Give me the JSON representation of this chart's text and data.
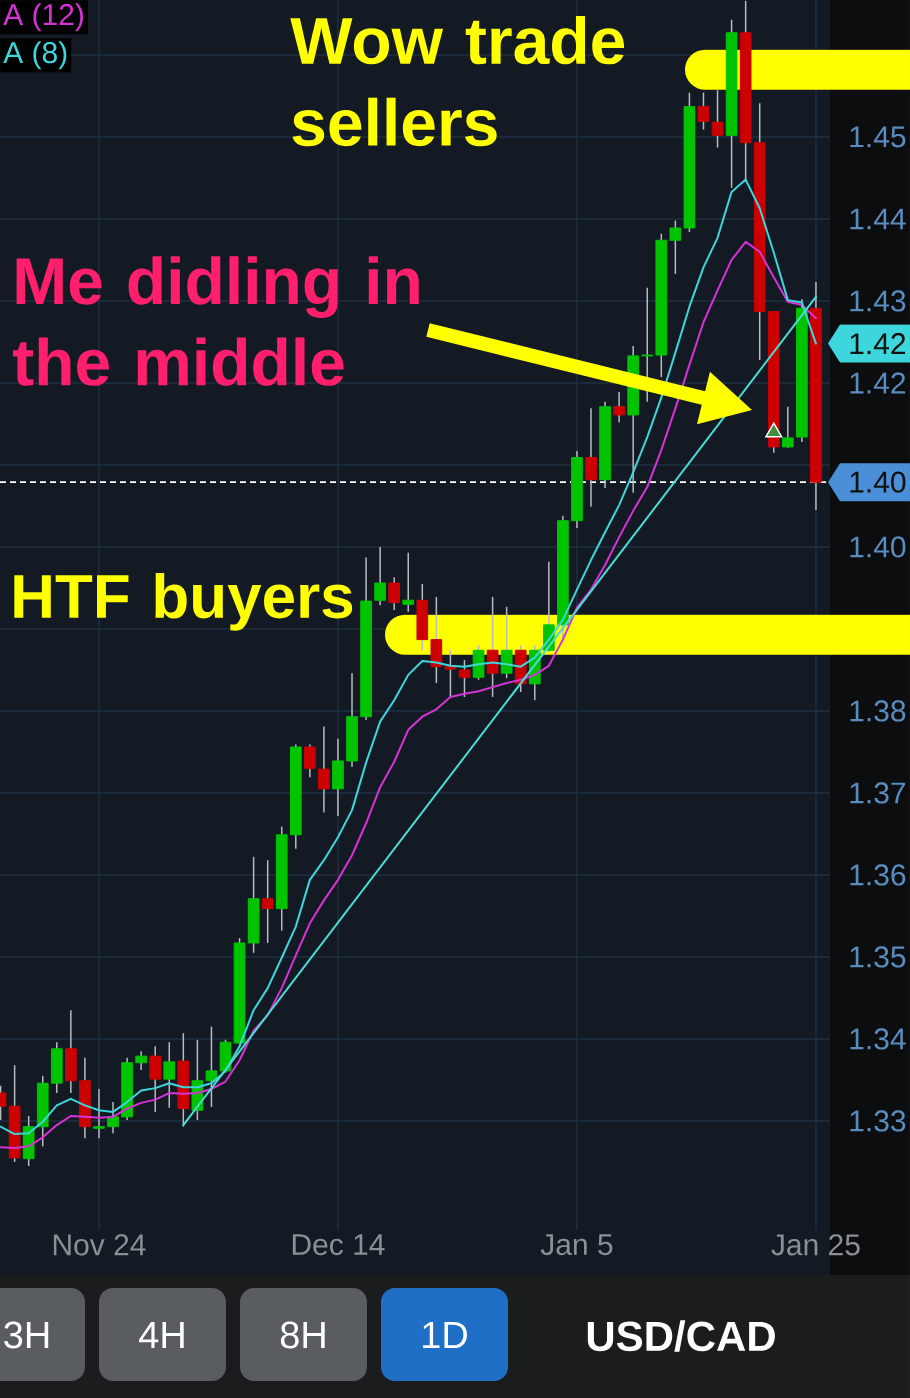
{
  "chart_data": {
    "type": "candlestick",
    "title": "USD/CAD",
    "categories": [
      null,
      null,
      null,
      null,
      null,
      null,
      null,
      "Nov 24",
      null,
      null,
      null,
      null,
      null,
      null,
      null,
      null,
      null,
      null,
      null,
      null,
      null,
      null,
      null,
      null,
      "Dec 14",
      null,
      null,
      null,
      null,
      null,
      null,
      null,
      null,
      null,
      null,
      null,
      null,
      null,
      null,
      null,
      null,
      "Jan 5",
      null,
      null,
      null,
      null,
      null,
      null,
      null,
      null,
      null,
      null,
      null,
      null,
      null,
      null,
      null,
      null,
      "Jan 25"
    ],
    "ohlc": [
      [
        1.3334,
        1.3343,
        1.3301,
        1.3318
      ],
      [
        1.3318,
        1.3368,
        1.325,
        1.3255
      ],
      [
        1.3254,
        1.3306,
        1.3245,
        1.3293
      ],
      [
        1.3293,
        1.3355,
        1.3269,
        1.3346
      ],
      [
        1.3346,
        1.3396,
        1.3334,
        1.3388
      ],
      [
        1.3388,
        1.3435,
        1.3334,
        1.3349
      ],
      [
        1.3349,
        1.3377,
        1.3279,
        1.3293
      ],
      [
        1.3291,
        1.3339,
        1.3279,
        1.3293
      ],
      [
        1.3293,
        1.3323,
        1.3285,
        1.3305
      ],
      [
        1.3305,
        1.3377,
        1.3301,
        1.3371
      ],
      [
        1.3371,
        1.3385,
        1.3362,
        1.3379
      ],
      [
        1.3379,
        1.3391,
        1.3311,
        1.3351
      ],
      [
        1.3351,
        1.3396,
        1.3316,
        1.3372
      ],
      [
        1.3373,
        1.3407,
        1.3293,
        1.3315
      ],
      [
        1.3313,
        1.3399,
        1.3301,
        1.3349
      ],
      [
        1.3349,
        1.3415,
        1.3317,
        1.3361
      ],
      [
        1.3361,
        1.3399,
        1.3359,
        1.3396
      ],
      [
        1.3395,
        1.3523,
        1.3394,
        1.3517
      ],
      [
        1.3517,
        1.3622,
        1.3505,
        1.3571
      ],
      [
        1.3571,
        1.3618,
        1.3517,
        1.3559
      ],
      [
        1.3559,
        1.3659,
        1.3532,
        1.3649
      ],
      [
        1.3649,
        1.3759,
        1.3632,
        1.3756
      ],
      [
        1.3756,
        1.3759,
        1.3719,
        1.373
      ],
      [
        1.3729,
        1.3781,
        1.3676,
        1.3705
      ],
      [
        1.3705,
        1.3766,
        1.3672,
        1.3739
      ],
      [
        1.3739,
        1.3846,
        1.3732,
        1.3793
      ],
      [
        1.3793,
        1.3987,
        1.3789,
        1.3934
      ],
      [
        1.3935,
        1.4,
        1.3929,
        1.3956
      ],
      [
        1.3956,
        1.3963,
        1.3923,
        1.3932
      ],
      [
        1.393,
        1.3993,
        1.3921,
        1.3935
      ],
      [
        1.3935,
        1.3955,
        1.3874,
        1.3887
      ],
      [
        1.3887,
        1.3939,
        1.3834,
        1.3854
      ],
      [
        1.3854,
        1.3874,
        1.3817,
        1.3851
      ],
      [
        1.385,
        1.3862,
        1.3817,
        1.3841
      ],
      [
        1.3841,
        1.388,
        1.3838,
        1.3874
      ],
      [
        1.3874,
        1.3939,
        1.3817,
        1.3846
      ],
      [
        1.3846,
        1.3927,
        1.384,
        1.3874
      ],
      [
        1.3874,
        1.388,
        1.3823,
        1.3833
      ],
      [
        1.3833,
        1.388,
        1.3813,
        1.3874
      ],
      [
        1.3874,
        1.3982,
        1.3872,
        1.3905
      ],
      [
        1.3905,
        1.4038,
        1.3887,
        1.4032
      ],
      [
        1.4032,
        1.4117,
        1.4023,
        1.4109
      ],
      [
        1.4109,
        1.4169,
        1.4049,
        1.4082
      ],
      [
        1.4082,
        1.4177,
        1.4072,
        1.4171
      ],
      [
        1.4171,
        1.4189,
        1.4152,
        1.4161
      ],
      [
        1.4161,
        1.4245,
        1.4066,
        1.4233
      ],
      [
        1.4233,
        1.4316,
        1.4177,
        1.4234
      ],
      [
        1.4234,
        1.4382,
        1.4207,
        1.4374
      ],
      [
        1.4374,
        1.4398,
        1.4333,
        1.4389
      ],
      [
        1.4389,
        1.4554,
        1.4384,
        1.4537
      ],
      [
        1.4537,
        1.4554,
        1.4509,
        1.4519
      ],
      [
        1.4518,
        1.4557,
        1.4487,
        1.4502
      ],
      [
        1.4502,
        1.4643,
        1.4438,
        1.4627
      ],
      [
        1.4627,
        1.4666,
        1.4448,
        1.4493
      ],
      [
        1.4493,
        1.4541,
        1.4228,
        1.4287
      ],
      [
        1.4287,
        1.4287,
        1.4115,
        1.4122
      ],
      [
        1.4122,
        1.4171,
        1.4121,
        1.4133
      ],
      [
        1.4134,
        1.4302,
        1.4128,
        1.4291
      ],
      [
        1.4291,
        1.4323,
        1.4045,
        1.4079
      ]
    ],
    "colors": [
      "#cc0000",
      "#cc0000",
      "#00c400",
      "#00c400",
      "#00c400",
      "#cc0000",
      "#cc0000",
      "#00c400",
      "#00c400",
      "#00c400",
      "#00c400",
      "#cc0000",
      "#00c400",
      "#cc0000",
      "#00c400",
      "#00c400",
      "#00c400",
      "#00c400",
      "#00c400",
      "#cc0000",
      "#00c400",
      "#00c400",
      "#cc0000",
      "#cc0000",
      "#00c400",
      "#00c400",
      "#00c400",
      "#00c400",
      "#cc0000",
      "#00c400",
      "#cc0000",
      "#cc0000",
      "#cc0000",
      "#cc0000",
      "#00c400",
      "#cc0000",
      "#00c400",
      "#cc0000",
      "#00c400",
      "#00c400",
      "#00c400",
      "#00c400",
      "#cc0000",
      "#00c400",
      "#cc0000",
      "#00c400",
      "#00c400",
      "#00c400",
      "#00c400",
      "#00c400",
      "#cc0000",
      "#cc0000",
      "#00c400",
      "#cc0000",
      "#cc0000",
      "#cc0000",
      "#00c400",
      "#00c400",
      "#cc0000"
    ],
    "series": [
      {
        "name": "A (12)",
        "type": "line",
        "color": "#d633d6",
        "values": [
          1.3268,
          1.3267,
          1.3269,
          1.328,
          1.3295,
          1.3306,
          1.3305,
          1.3304,
          1.3305,
          1.3315,
          1.3322,
          1.3326,
          1.3334,
          1.3333,
          1.3334,
          1.3339,
          1.3348,
          1.3374,
          1.341,
          1.3429,
          1.3462,
          1.3502,
          1.3541,
          1.3569,
          1.3594,
          1.3624,
          1.3663,
          1.3707,
          1.3738,
          1.3777,
          1.3793,
          1.3802,
          1.3817,
          1.3821,
          1.3824,
          1.3829,
          1.3834,
          1.3838,
          1.3844,
          1.3855,
          1.3887,
          1.3926,
          1.3948,
          1.3978,
          1.4012,
          1.4044,
          1.4073,
          1.4118,
          1.4169,
          1.4222,
          1.4274,
          1.4313,
          1.435,
          1.4372,
          1.436,
          1.4329,
          1.4299,
          1.4295,
          1.4279
        ]
      },
      {
        "name": "A (8)",
        "type": "line",
        "color": "#3dd6dc",
        "values": [
          1.3293,
          1.3284,
          1.3285,
          1.3299,
          1.3319,
          1.3327,
          1.3319,
          1.3313,
          1.3311,
          1.3323,
          1.3337,
          1.334,
          1.3346,
          1.3341,
          1.3341,
          1.3346,
          1.3361,
          1.3391,
          1.3435,
          1.3462,
          1.3499,
          1.3537,
          1.3594,
          1.3618,
          1.3646,
          1.3679,
          1.3737,
          1.3787,
          1.3813,
          1.3844,
          1.3861,
          1.3859,
          1.3855,
          1.3854,
          1.3857,
          1.3859,
          1.3857,
          1.3854,
          1.3865,
          1.3887,
          1.3911,
          1.3948,
          1.3984,
          1.4018,
          1.4051,
          1.4091,
          1.4134,
          1.4182,
          1.4237,
          1.4293,
          1.4341,
          1.4377,
          1.4433,
          1.4448,
          1.4413,
          1.4359,
          1.4301,
          1.4298,
          1.4248
        ],
        "value_labels": [
          null,
          null,
          null,
          null,
          null,
          null,
          null,
          null,
          null,
          null,
          null,
          null,
          null,
          null,
          null,
          null,
          null,
          null,
          null,
          null,
          null,
          null,
          null,
          null,
          null,
          null,
          null,
          null,
          null,
          null,
          null,
          null,
          null,
          null,
          null,
          null,
          null,
          null,
          null,
          null,
          null,
          null,
          null,
          null,
          null,
          null,
          null,
          null,
          null,
          null,
          null,
          null,
          null,
          null,
          null,
          null,
          null,
          null,
          "1.42"
        ]
      },
      {
        "type": "line",
        "color": "#48dcd4",
        "values": [
          null,
          null,
          null,
          null,
          null,
          null,
          null,
          null,
          null,
          null,
          null,
          null,
          null,
          1.3295,
          null,
          null,
          null,
          null,
          null,
          null,
          null,
          null,
          null,
          null,
          null,
          null,
          null,
          null,
          null,
          null,
          null,
          null,
          null,
          null,
          null,
          null,
          null,
          null,
          null,
          null,
          null,
          null,
          null,
          null,
          null,
          null,
          null,
          null,
          null,
          null,
          null,
          null,
          null,
          null,
          null,
          null,
          null,
          null,
          1.4305
        ]
      },
      {
        "type": "scatter",
        "marker": "triangle",
        "color": "#3f8f3f",
        "values": [
          null,
          null,
          null,
          null,
          null,
          null,
          null,
          null,
          null,
          null,
          null,
          null,
          null,
          null,
          null,
          null,
          null,
          null,
          null,
          null,
          null,
          null,
          null,
          null,
          null,
          null,
          null,
          null,
          null,
          null,
          null,
          null,
          null,
          null,
          null,
          null,
          null,
          null,
          null,
          null,
          null,
          null,
          null,
          null,
          null,
          null,
          null,
          null,
          null,
          null,
          null,
          null,
          null,
          null,
          null,
          1.414,
          null,
          null,
          null
        ]
      }
    ],
    "ylim": [
      1.3167,
      1.4667
    ],
    "yticks": [
      1.33,
      1.34,
      1.35,
      1.36,
      1.37,
      1.38,
      {
        "value": 1.39,
        "label": null
      },
      {
        "value": 1.4,
        "label": "1.40"
      },
      {
        "value": 1.41,
        "label": null
      },
      1.42,
      1.43,
      1.44,
      1.45,
      {
        "value": 1.46,
        "label": null
      }
    ],
    "grid": true,
    "legend": "top left",
    "ref_lines": [
      {
        "axis": "y",
        "value": 1.4582,
        "label": "Wow trade sellers",
        "color": "#ffff00",
        "line_style": "solid"
      },
      {
        "axis": "y",
        "value": 1.3893,
        "label": "HTF buyers",
        "color": "#ffff00",
        "line_style": "solid"
      },
      {
        "axis": "y",
        "value": 1.4079,
        "color": "#ffffff",
        "line_style": "dashed"
      }
    ],
    "annotations": [
      "Me didling in the middle",
      "1.40",
      "3H",
      "4H",
      "8H",
      "1D"
    ]
  }
}
